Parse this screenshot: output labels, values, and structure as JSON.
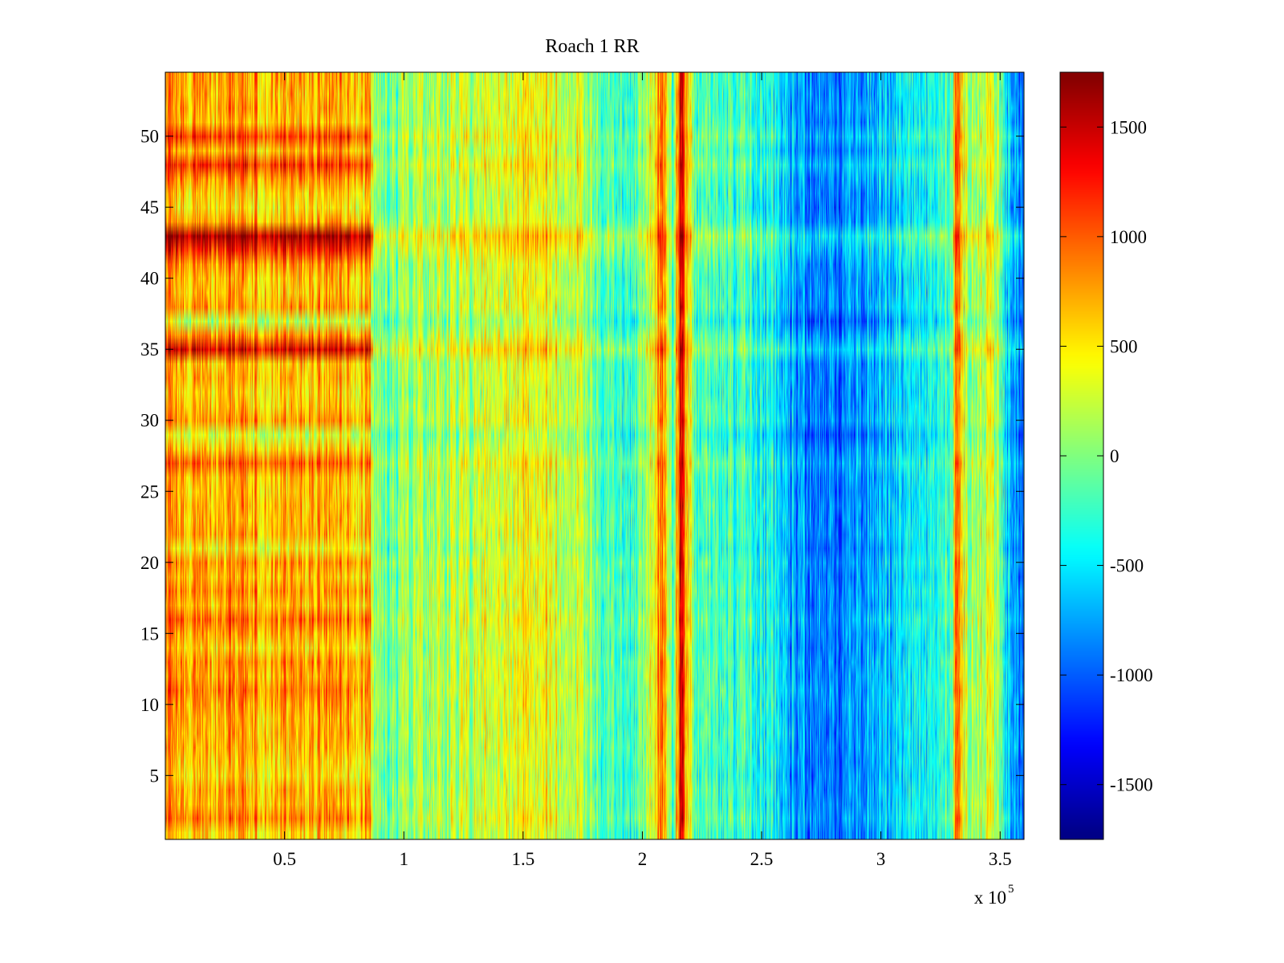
{
  "chart_data": {
    "type": "heatmap",
    "title": "Roach 1 RR",
    "xlabel": "",
    "ylabel": "",
    "x_exponent_label": "x 10",
    "x_exponent_power": "5",
    "x_multiplier": 100000,
    "xlim": [
      0,
      3.6
    ],
    "ylim": [
      0.5,
      54.5
    ],
    "rows": 54,
    "x_ticks": [
      {
        "value": 0.5,
        "label": "0.5"
      },
      {
        "value": 1,
        "label": "1"
      },
      {
        "value": 1.5,
        "label": "1.5"
      },
      {
        "value": 2,
        "label": "2"
      },
      {
        "value": 2.5,
        "label": "2.5"
      },
      {
        "value": 3,
        "label": "3"
      },
      {
        "value": 3.5,
        "label": "3.5"
      }
    ],
    "y_ticks": [
      {
        "value": 5,
        "label": "5"
      },
      {
        "value": 10,
        "label": "10"
      },
      {
        "value": 15,
        "label": "15"
      },
      {
        "value": 20,
        "label": "20"
      },
      {
        "value": 25,
        "label": "25"
      },
      {
        "value": 30,
        "label": "30"
      },
      {
        "value": 35,
        "label": "35"
      },
      {
        "value": 40,
        "label": "40"
      },
      {
        "value": 45,
        "label": "45"
      },
      {
        "value": 50,
        "label": "50"
      }
    ],
    "colorbar": {
      "colormap": "jet",
      "clim": [
        -1750,
        1750
      ],
      "ticks": [
        {
          "value": 1500,
          "label": "1500"
        },
        {
          "value": 1000,
          "label": "1000"
        },
        {
          "value": 500,
          "label": "500"
        },
        {
          "value": 0,
          "label": "0"
        },
        {
          "value": -500,
          "label": "-500"
        },
        {
          "value": -1000,
          "label": "-1000"
        },
        {
          "value": -1500,
          "label": "-1500"
        }
      ]
    },
    "column_profile": [
      [
        0.0,
        800
      ],
      [
        0.1,
        750
      ],
      [
        0.2,
        700
      ],
      [
        0.3,
        750
      ],
      [
        0.4,
        700
      ],
      [
        0.5,
        650
      ],
      [
        0.6,
        700
      ],
      [
        0.7,
        750
      ],
      [
        0.8,
        700
      ],
      [
        0.86,
        650
      ],
      [
        0.87,
        100
      ],
      [
        0.95,
        -50
      ],
      [
        1.05,
        100
      ],
      [
        1.2,
        150
      ],
      [
        1.4,
        250
      ],
      [
        1.5,
        450
      ],
      [
        1.55,
        350
      ],
      [
        1.6,
        500
      ],
      [
        1.65,
        300
      ],
      [
        1.75,
        150
      ],
      [
        1.8,
        -100
      ],
      [
        1.9,
        -300
      ],
      [
        2.0,
        -100
      ],
      [
        2.05,
        400
      ],
      [
        2.08,
        1100
      ],
      [
        2.1,
        500
      ],
      [
        2.13,
        -250
      ],
      [
        2.15,
        900
      ],
      [
        2.16,
        1600
      ],
      [
        2.18,
        700
      ],
      [
        2.22,
        -100
      ],
      [
        2.35,
        -250
      ],
      [
        2.5,
        -350
      ],
      [
        2.6,
        -650
      ],
      [
        2.7,
        -900
      ],
      [
        2.8,
        -950
      ],
      [
        2.9,
        -800
      ],
      [
        3.0,
        -650
      ],
      [
        3.1,
        -550
      ],
      [
        3.2,
        -400
      ],
      [
        3.3,
        -200
      ],
      [
        3.31,
        700
      ],
      [
        3.32,
        1200
      ],
      [
        3.33,
        700
      ],
      [
        3.36,
        150
      ],
      [
        3.45,
        250
      ],
      [
        3.5,
        0
      ],
      [
        3.52,
        -450
      ],
      [
        3.55,
        -800
      ],
      [
        3.6,
        -1000
      ]
    ],
    "hot_rows": [
      {
        "y": 43,
        "offset": 900
      },
      {
        "y": 35,
        "offset": 700
      },
      {
        "y": 42,
        "offset": 500
      },
      {
        "y": 48,
        "offset": 400
      },
      {
        "y": 50,
        "offset": 350
      },
      {
        "y": 11,
        "offset": 300
      },
      {
        "y": 2,
        "offset": 300
      },
      {
        "y": 27,
        "offset": 250
      },
      {
        "y": 16,
        "offset": 250
      }
    ],
    "cool_rows": [
      {
        "y": 21,
        "offset": -350
      },
      {
        "y": 29,
        "offset": -300
      },
      {
        "y": 37,
        "offset": -350
      },
      {
        "y": 5,
        "offset": -250
      },
      {
        "y": 45,
        "offset": -200
      }
    ],
    "cell_noise_amplitude": 700
  }
}
